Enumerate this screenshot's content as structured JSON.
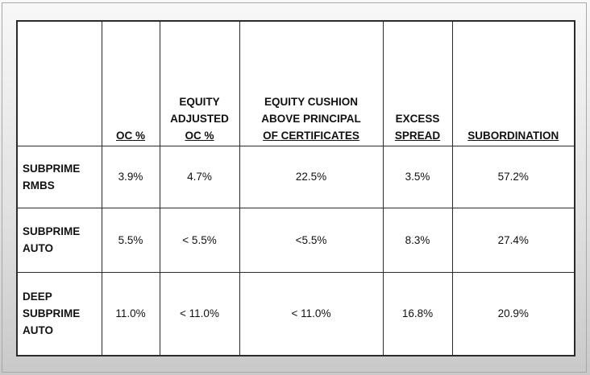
{
  "columns": [
    {
      "lines": [
        ""
      ]
    },
    {
      "lines": [
        "OC %"
      ]
    },
    {
      "lines": [
        "EQUITY",
        "ADJUSTED",
        "OC %"
      ]
    },
    {
      "lines": [
        "EQUITY CUSHION",
        "ABOVE PRINCIPAL",
        "OF CERTIFICATES"
      ]
    },
    {
      "lines": [
        "EXCESS",
        "SPREAD"
      ]
    },
    {
      "lines": [
        "SUBORDINATION"
      ]
    }
  ],
  "rows": [
    {
      "label_lines": [
        "SUBPRIME",
        "RMBS"
      ],
      "cells": [
        "3.9%",
        "4.7%",
        "22.5%",
        "3.5%",
        "57.2%"
      ]
    },
    {
      "label_lines": [
        "SUBPRIME",
        "AUTO"
      ],
      "cells": [
        "5.5%",
        "< 5.5%",
        "<5.5%",
        "8.3%",
        "27.4%"
      ]
    },
    {
      "label_lines": [
        "DEEP",
        "SUBPRIME",
        "AUTO"
      ],
      "cells": [
        "11.0%",
        "< 11.0%",
        "< 11.0%",
        "16.8%",
        "20.9%"
      ]
    }
  ]
}
